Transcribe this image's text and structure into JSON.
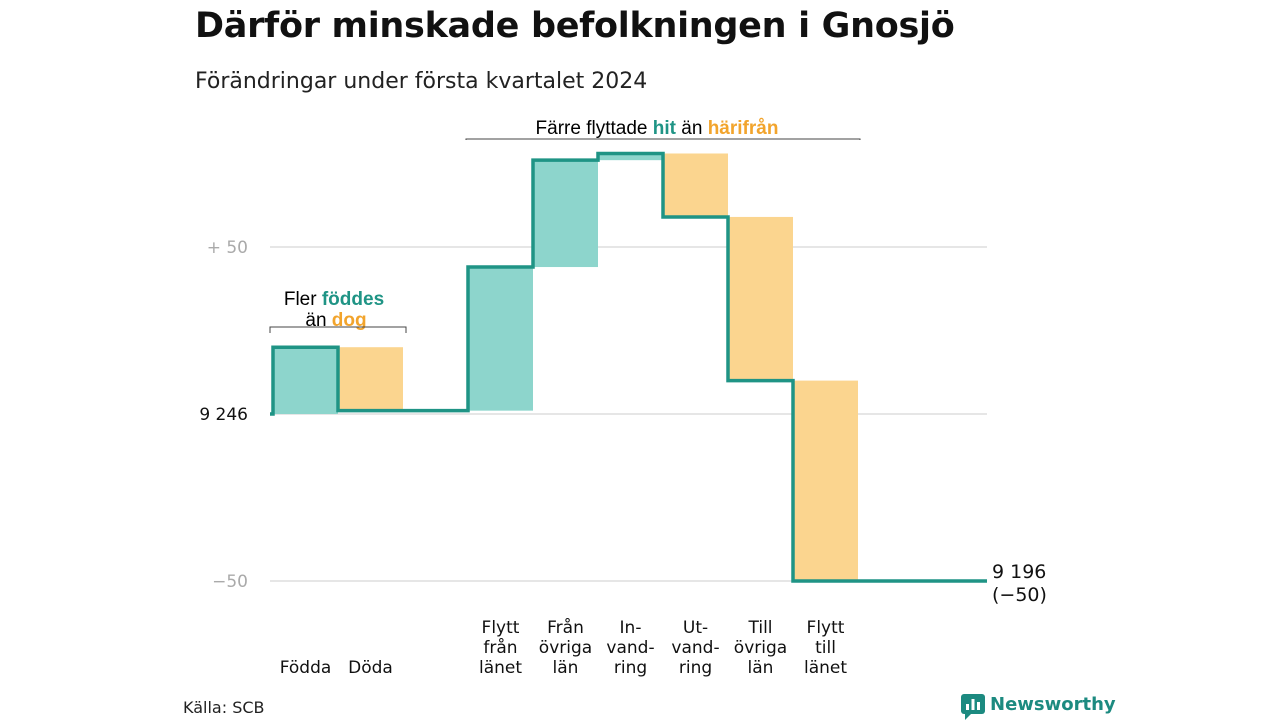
{
  "title": "Därför minskade befolkningen i Gnosjö",
  "subtitle": "Förändringar under första kvartalet 2024",
  "source": "Källa: SCB",
  "brand": "Newsworthy",
  "colors": {
    "increase": "#8dd5cc",
    "decrease": "#fbd58f",
    "line": "#1f9485",
    "accent_teal": "#1f9485",
    "accent_orange": "#f2a42c",
    "grid": "#dddddd",
    "tick": "#aaaaaa"
  },
  "chart_data": {
    "type": "waterfall",
    "baseline": 9246,
    "end_value": 9196,
    "end_label": [
      "9 196",
      "(−50)"
    ],
    "ylim": [
      -55,
      76
    ],
    "yticks": [
      {
        "value": 50,
        "label": "+  50",
        "dark": false
      },
      {
        "value": 0,
        "label": "9  246",
        "dark": true
      },
      {
        "value": -50,
        "label": "−50",
        "dark": false
      }
    ],
    "steps": [
      {
        "label": [
          "Födda"
        ],
        "delta": 20
      },
      {
        "label": [
          "Döda"
        ],
        "delta": -19
      },
      {
        "label": [],
        "delta": 0
      },
      {
        "label": [
          "Flytt",
          "från",
          "länet"
        ],
        "delta": 43
      },
      {
        "label": [
          "Från",
          "övriga",
          "län"
        ],
        "delta": 32
      },
      {
        "label": [
          "In-",
          "vand-",
          "ring"
        ],
        "delta": 2
      },
      {
        "label": [
          "Ut-",
          "vand-",
          "ring"
        ],
        "delta": -19
      },
      {
        "label": [
          "Till",
          "övriga",
          "län"
        ],
        "delta": -49
      },
      {
        "label": [
          "Flytt",
          "till",
          "länet"
        ],
        "delta": -60
      }
    ],
    "annotations": [
      {
        "text": [
          [
            "Fler ",
            ""
          ],
          [
            "föddes",
            "increase"
          ]
        ],
        "text2": [
          [
            "än ",
            ""
          ],
          [
            "dog",
            "decrease"
          ]
        ]
      },
      {
        "text": [
          [
            "Färre flyttade ",
            ""
          ],
          [
            "hit",
            "increase"
          ],
          [
            " än ",
            ""
          ],
          [
            "härifrån",
            "decrease"
          ]
        ]
      }
    ]
  }
}
